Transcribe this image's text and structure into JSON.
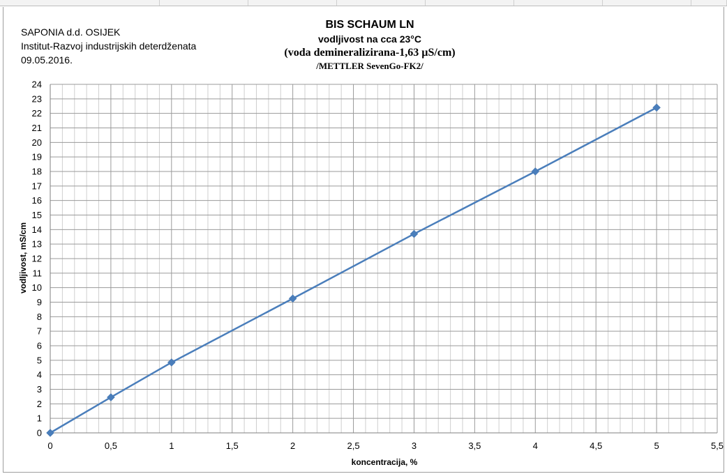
{
  "header": {
    "company": "SAPONIA d.d. OSIJEK",
    "institute": "Institut-Razvoj industrijskih deterdženata",
    "date": "09.05.2016."
  },
  "chart_data": {
    "type": "line",
    "title": "BIS SCHAUM LN",
    "subtitle_lines": [
      "vodljivost na cca 23°C",
      "(voda demineralizirana-1,63 µS/cm)",
      "/METTLER SevenGo-FK2/"
    ],
    "xlabel": "koncentracija, %",
    "ylabel": "vodljivost, mS/cm",
    "xlim": [
      0,
      5.5
    ],
    "ylim": [
      0,
      24
    ],
    "x_ticks": [
      "0",
      "0,5",
      "1",
      "1,5",
      "2",
      "2,5",
      "3",
      "3,5",
      "4",
      "4,5",
      "5",
      "5,5"
    ],
    "y_ticks": [
      "0",
      "1",
      "2",
      "3",
      "4",
      "5",
      "6",
      "7",
      "8",
      "9",
      "10",
      "11",
      "12",
      "13",
      "14",
      "15",
      "16",
      "17",
      "18",
      "19",
      "20",
      "21",
      "22",
      "23",
      "24"
    ],
    "grid": true,
    "series": [
      {
        "x": [
          0,
          0.5,
          1,
          2,
          3,
          4,
          5
        ],
        "y": [
          0,
          2.45,
          4.85,
          9.25,
          13.7,
          18.0,
          22.4
        ],
        "color": "#4a7ebb",
        "marker": "diamond"
      }
    ]
  }
}
